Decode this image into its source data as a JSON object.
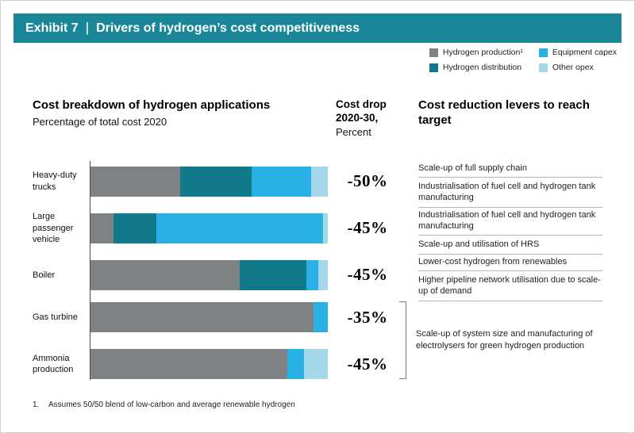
{
  "header": {
    "exhibit": "Exhibit 7",
    "separator": "|",
    "title": "Drivers of hydrogen’s cost competitiveness",
    "bar_color": "#1a8798"
  },
  "legend": {
    "items": [
      {
        "label": "Hydrogen production¹",
        "color": "#7f8285"
      },
      {
        "label": "Hydrogen distribution",
        "color": "#10798a"
      },
      {
        "label": "Equipment capex",
        "color": "#29b1e6"
      },
      {
        "label": "Other opex",
        "color": "#a4d7ea"
      }
    ]
  },
  "columns": {
    "breakdown_title": "Cost breakdown of hydrogen applications",
    "breakdown_subtitle": "Percentage of total cost 2020",
    "drop_title": "Cost drop 2020-30,",
    "drop_subtitle": "Percent",
    "levers_title": "Cost reduction levers to reach target"
  },
  "chart_data": {
    "type": "bar",
    "orientation": "horizontal",
    "stacked": true,
    "title": "Cost breakdown of hydrogen applications",
    "subtitle": "Percentage of total cost 2020",
    "unit": "percent of total cost",
    "xlim": [
      0,
      100
    ],
    "grid": false,
    "legend_position": "top-right",
    "categories": [
      "Heavy-duty trucks",
      "Large passenger vehicle",
      "Boiler",
      "Gas turbine",
      "Ammonia production"
    ],
    "series": [
      {
        "name": "Hydrogen production¹",
        "color": "#7f8285",
        "values": [
          38,
          10,
          63,
          94,
          83
        ]
      },
      {
        "name": "Hydrogen distribution",
        "color": "#10798a",
        "values": [
          30,
          18,
          28,
          0,
          0
        ]
      },
      {
        "name": "Equipment capex",
        "color": "#29b1e6",
        "values": [
          25,
          70,
          5,
          6,
          7
        ]
      },
      {
        "name": "Other opex",
        "color": "#a4d7ea",
        "values": [
          7,
          2,
          4,
          0,
          10
        ]
      }
    ],
    "cost_drop": [
      "-50%",
      "-45%",
      "-45%",
      "-35%",
      "-45%"
    ],
    "levers": [
      [
        "Scale-up of full supply chain",
        "Industrialisation of fuel cell and hydrogen tank manufacturing"
      ],
      [
        "Industrialisation of fuel cell and hydrogen tank manufacturing",
        "Scale-up and utilisation of HRS"
      ],
      [
        "Lower-cost hydrogen from renewables",
        "Higher pipeline network utilisation due to scale-up of demand"
      ]
    ],
    "bracket_lever": "Scale-up of system size and manufacturing of electrolysers for green hydrogen production",
    "bracket_rows": [
      3,
      4
    ]
  },
  "footnote": {
    "marker": "1.",
    "text": "Assumes 50/50 blend of low-carbon and average renewable hydrogen"
  }
}
